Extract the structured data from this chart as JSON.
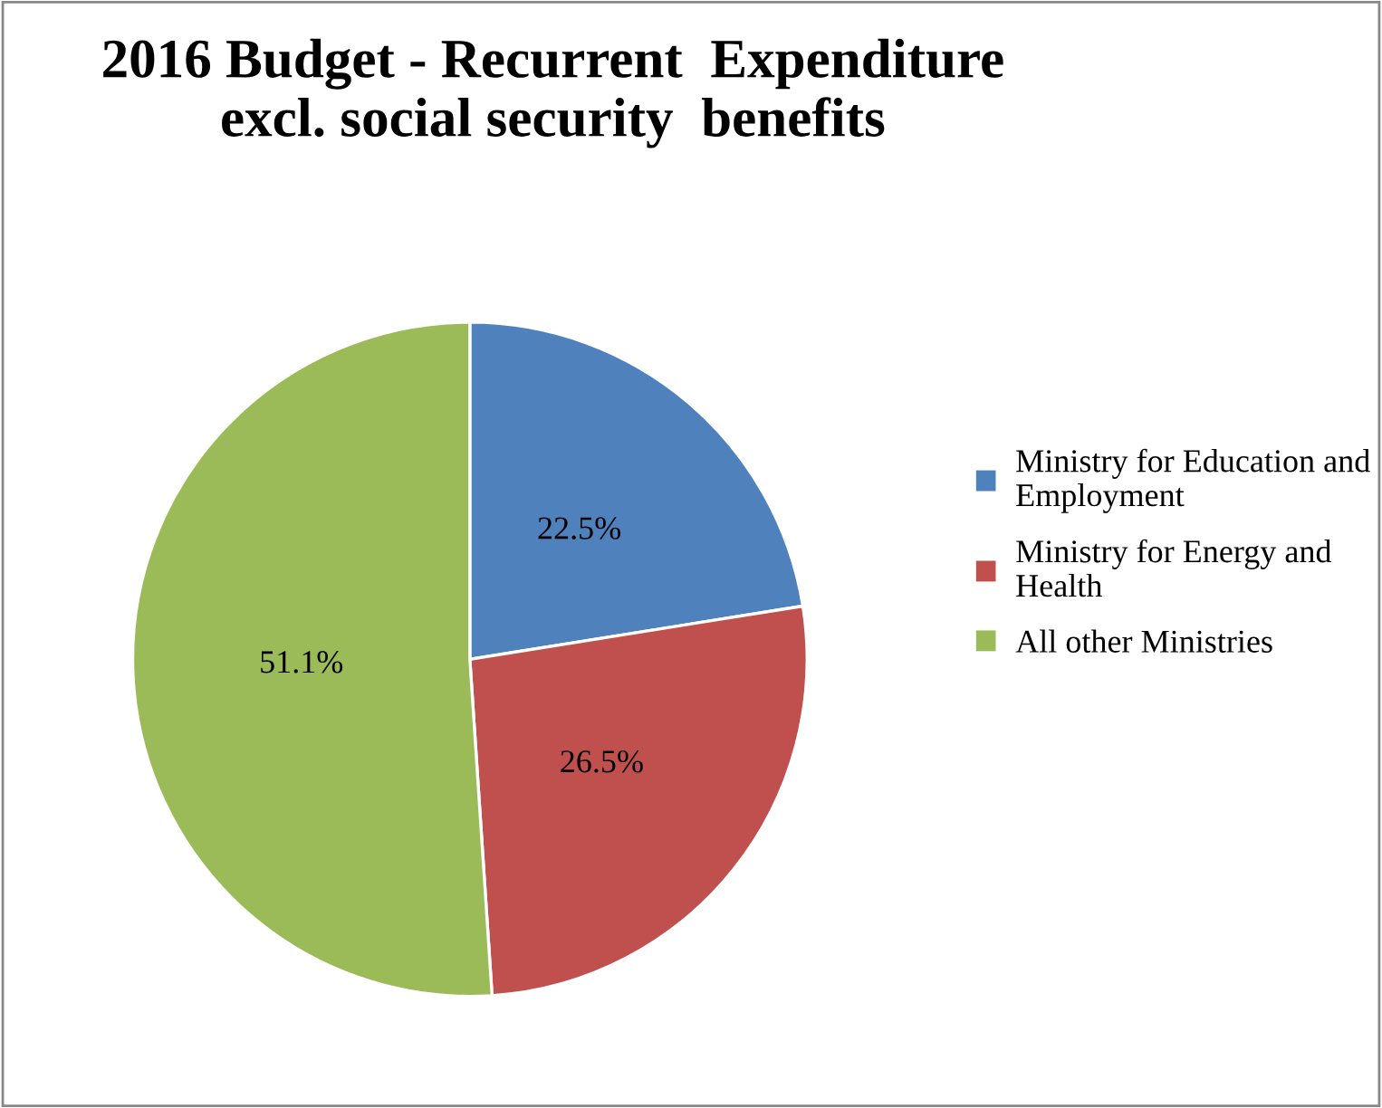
{
  "chart_data": {
    "type": "pie",
    "title": "2016 Budget - Recurrent  Expenditure\nexcl. social security  benefits",
    "categories": [
      "Ministry for Education and Employment",
      "Ministry for Energy and Health",
      "All other Ministries"
    ],
    "values": [
      22.5,
      26.5,
      51.1
    ],
    "colors": [
      "#4f81bd",
      "#c0504d",
      "#9bbb59"
    ],
    "value_labels": [
      "22.5%",
      "26.5%",
      "51.1%"
    ],
    "legend": "right"
  }
}
